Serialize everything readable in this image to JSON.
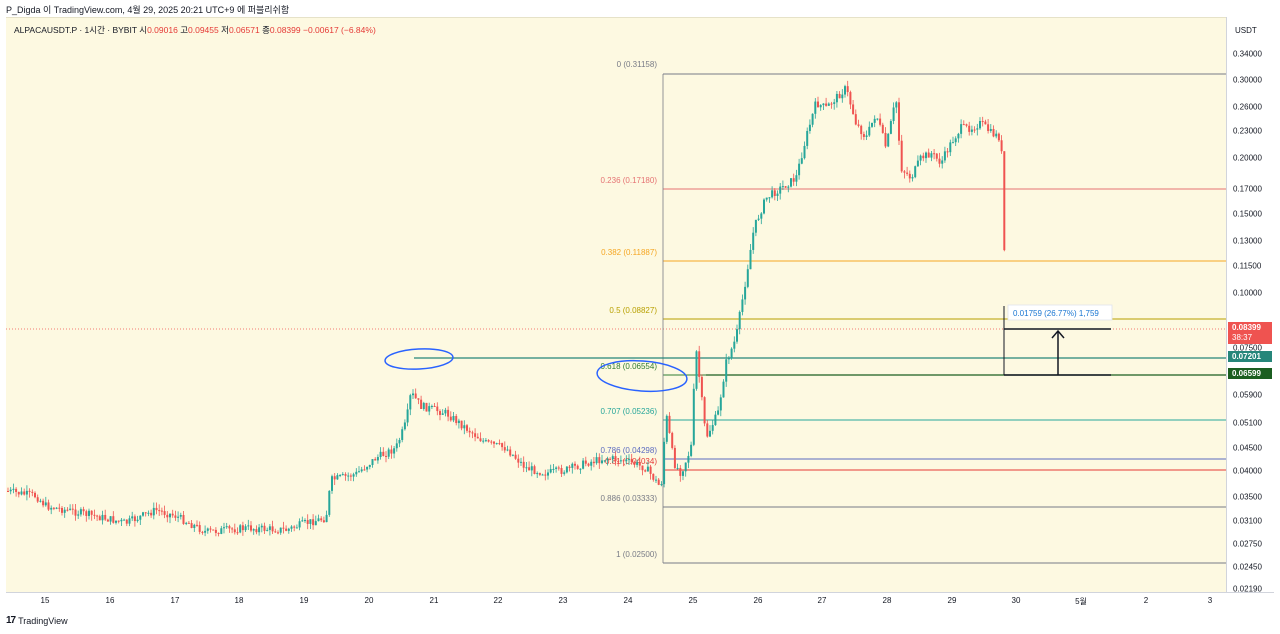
{
  "header": {
    "publisher": "P_Digda 이 TradingView.com, 4월 29, 2025 20:21 UTC+9 에 퍼블리쉬함"
  },
  "symbol": {
    "name": "ALPACAUSDT.P · 1시간 · BYBIT",
    "open_label": "시",
    "open": "0.09016",
    "high_label": "고",
    "high": "0.09455",
    "low_label": "저",
    "low": "0.06571",
    "close_label": "종",
    "close": "0.08399",
    "change": "−0.00617 (−6.84%)"
  },
  "price_axis": {
    "currency": "USDT",
    "ticks": [
      "0.34000",
      "0.30000",
      "0.26000",
      "0.23000",
      "0.20000",
      "0.17000",
      "0.15000",
      "0.13000",
      "0.11500",
      "0.10000",
      "0.07500",
      "0.05900",
      "0.05100",
      "0.04500",
      "0.04000",
      "0.03500",
      "0.03100",
      "0.02750",
      "0.02450",
      "0.02190"
    ],
    "current_price": "0.08399",
    "countdown": "38:37",
    "level_tags": [
      "0.07201",
      "0.06599"
    ]
  },
  "time_axis": {
    "ticks": [
      "15",
      "16",
      "17",
      "18",
      "19",
      "20",
      "21",
      "22",
      "23",
      "24",
      "25",
      "26",
      "27",
      "28",
      "29",
      "30",
      "5월",
      "2",
      "3"
    ]
  },
  "fib_levels": [
    {
      "label": "0 (0.31158)",
      "color": "#787b86"
    },
    {
      "label": "0.236 (0.17180)",
      "color": "#e57373"
    },
    {
      "label": "0.382 (0.11887)",
      "color": "#f5a623"
    },
    {
      "label": "0.5 (0.08827)",
      "color": "#b8a000"
    },
    {
      "label": "0.618 (0.06554)",
      "color": "#2e7d32"
    },
    {
      "label": "0.707 (0.05236)",
      "color": "#26a69a"
    },
    {
      "label": "0.786 (0.04298)",
      "color": "#5c6bc0"
    },
    {
      "label": "0.81 (0.04034)",
      "color": "#e53935"
    },
    {
      "label": "0.886 (0.03333)",
      "color": "#787b86"
    },
    {
      "label": "1 (0.02500)",
      "color": "#787b86"
    }
  ],
  "measure": {
    "label": "0.01759 (26.77%) 1,759"
  },
  "colors": {
    "up": "#26a69a",
    "down": "#ef5350",
    "background": "#fdf9e1",
    "annotation": "#2962ff"
  },
  "footer": {
    "brand": "TradingView"
  }
}
